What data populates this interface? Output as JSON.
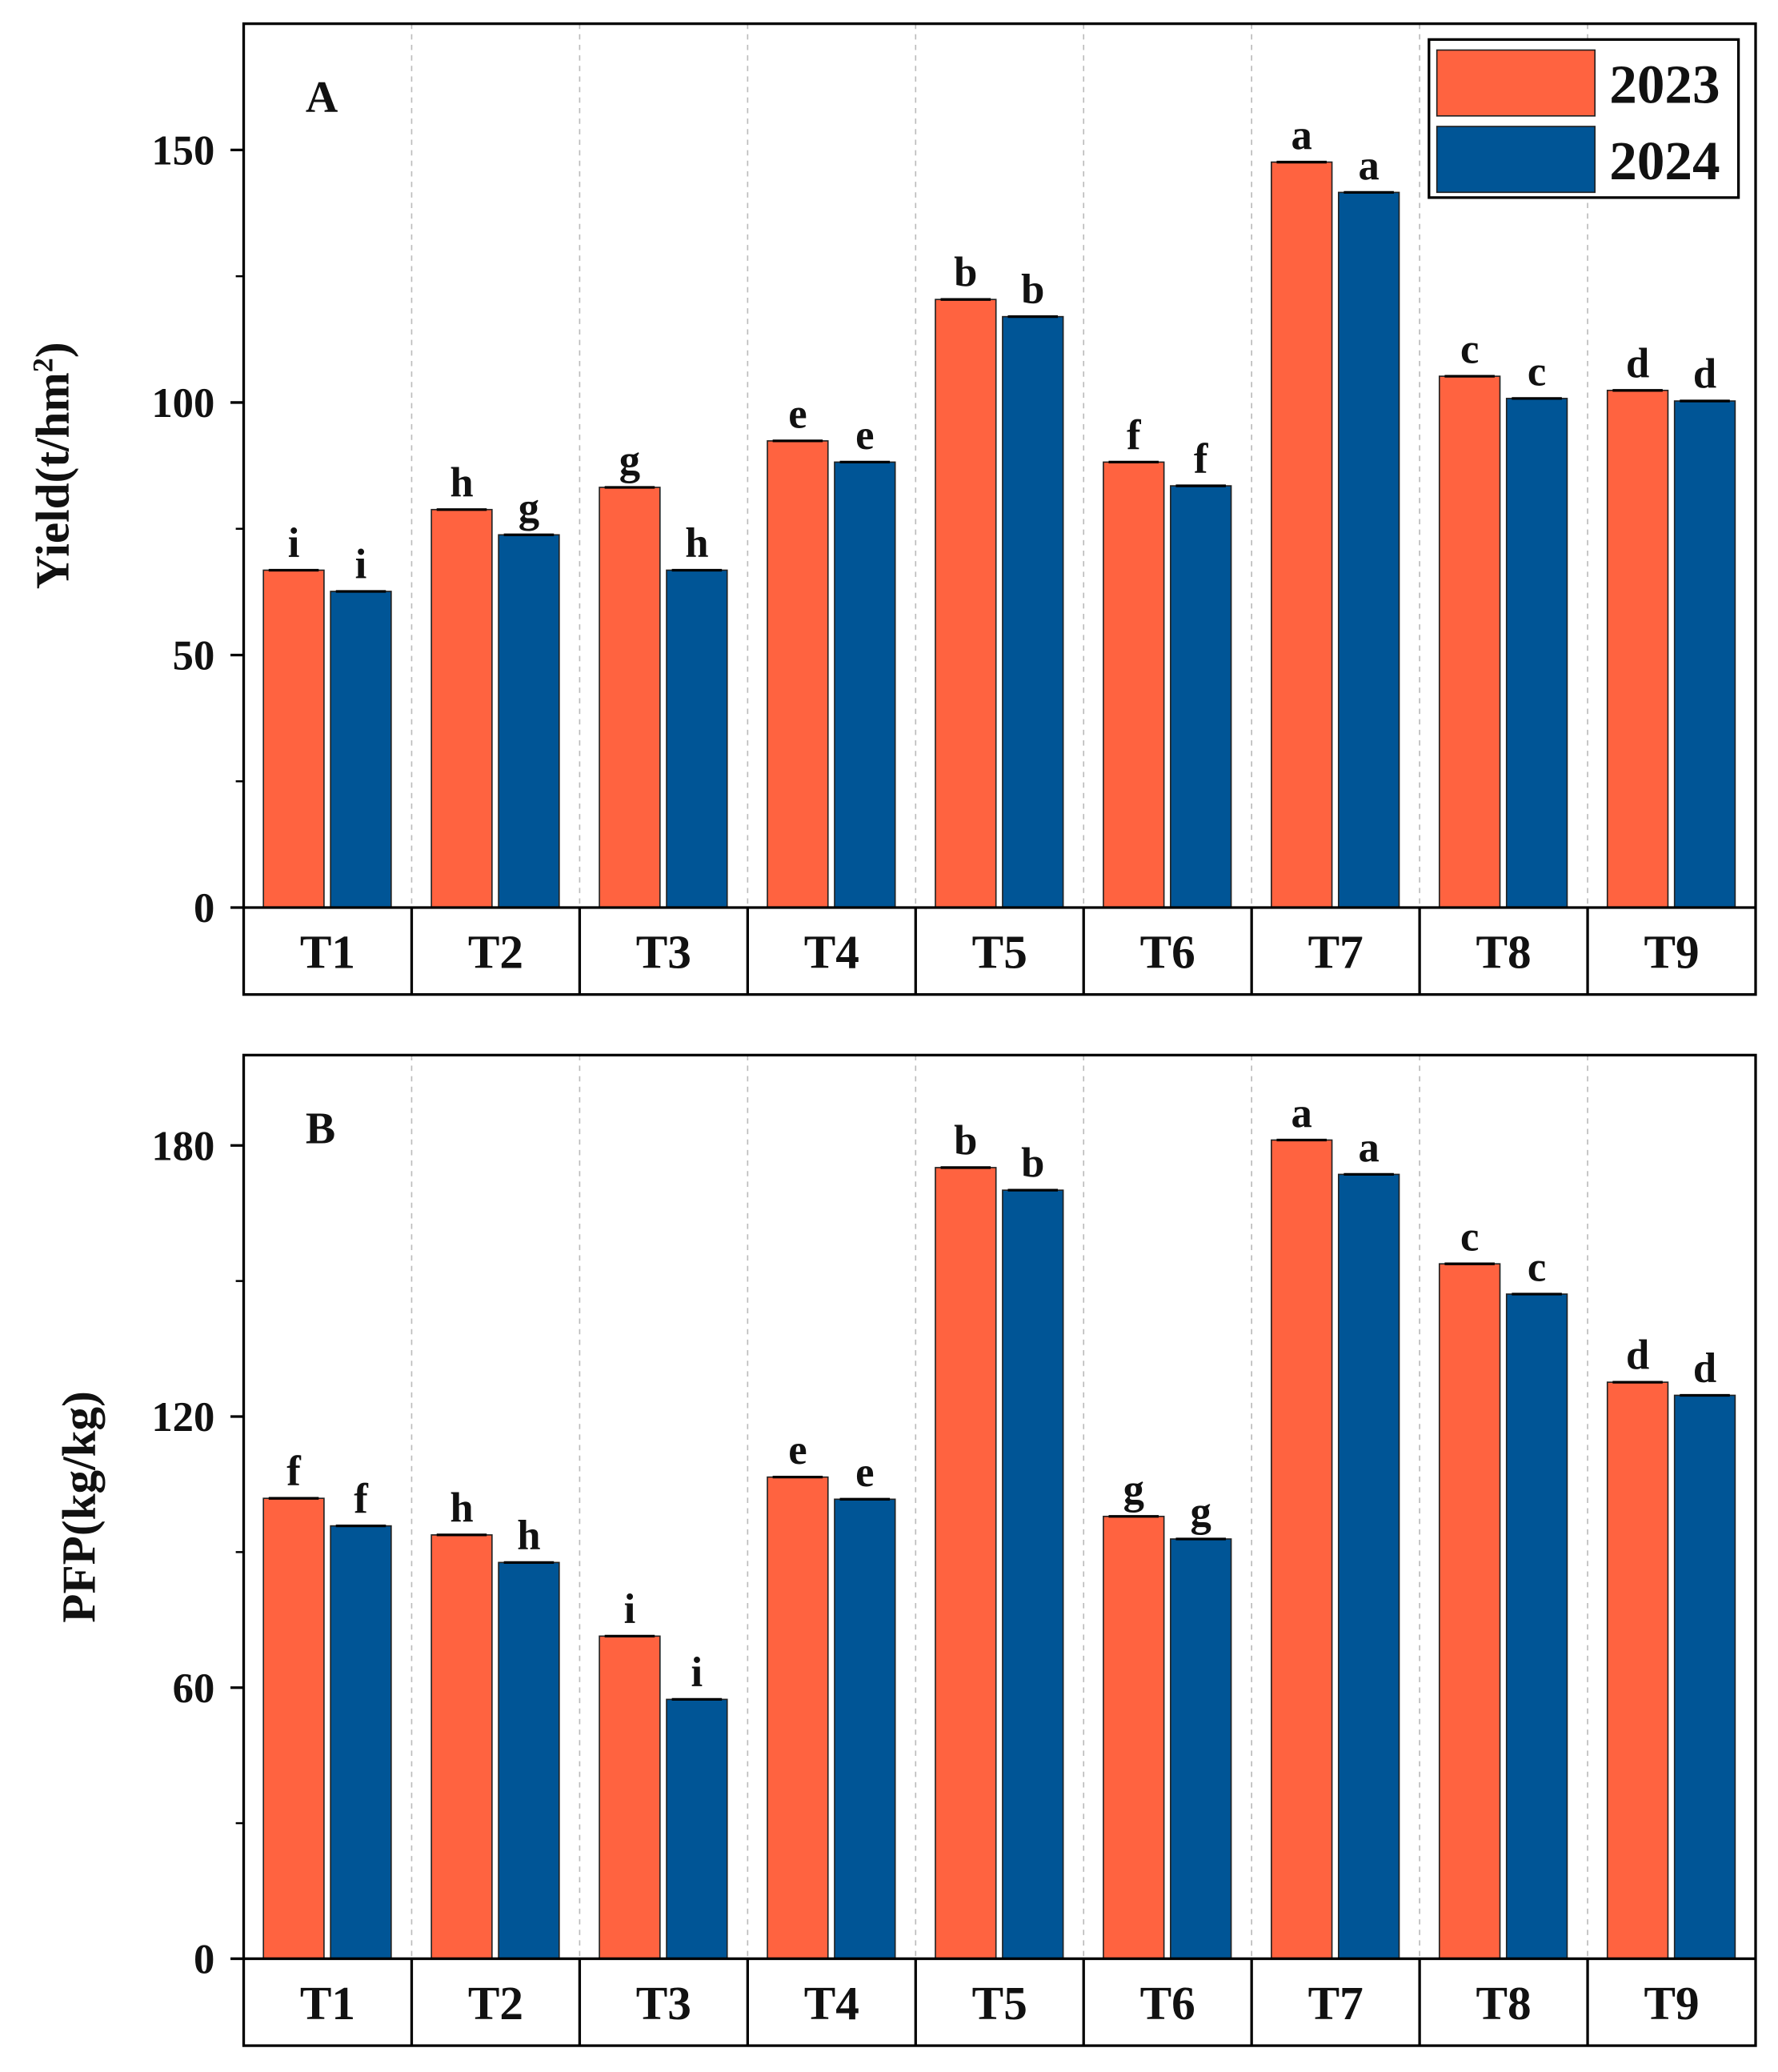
{
  "colors": {
    "2023": "#FF6340",
    "2024": "#005596"
  },
  "legend": {
    "placement": "top-right",
    "entries": [
      "2023",
      "2024"
    ]
  },
  "chart_data": [
    {
      "type": "bar",
      "panel_label": "A",
      "title": "",
      "xlabel": "",
      "ylabel": "Yield(t/hm",
      "ylabel_sup": "2",
      "ylabel_close": ")",
      "ylim": [
        0,
        175
      ],
      "yticks": [
        0,
        50,
        100,
        150
      ],
      "yminor": [
        25,
        75,
        125
      ],
      "grid": "vertical dashed between categories",
      "categories": [
        "T1",
        "T2",
        "T3",
        "T4",
        "T5",
        "T6",
        "T7",
        "T8",
        "T9"
      ],
      "series": [
        {
          "name": "2023",
          "values": [
            66.8,
            78.8,
            83.2,
            92.4,
            120.4,
            88.2,
            147.6,
            105.2,
            102.4
          ],
          "letters": [
            "i",
            "h",
            "g",
            "e",
            "b",
            "f",
            "a",
            "c",
            "d"
          ]
        },
        {
          "name": "2024",
          "values": [
            62.6,
            73.8,
            66.8,
            88.2,
            117.0,
            83.5,
            141.6,
            100.8,
            100.3
          ],
          "letters": [
            "i",
            "g",
            "h",
            "e",
            "b",
            "f",
            "a",
            "c",
            "d"
          ]
        }
      ]
    },
    {
      "type": "bar",
      "panel_label": "B",
      "title": "",
      "xlabel": "",
      "ylabel": "PFP(kg/kg)",
      "ylim": [
        0,
        200
      ],
      "yticks": [
        0,
        60,
        120,
        180
      ],
      "yminor": [
        30,
        90,
        150
      ],
      "grid": "vertical dashed between categories",
      "categories": [
        "T1",
        "T2",
        "T3",
        "T4",
        "T5",
        "T6",
        "T7",
        "T8",
        "T9"
      ],
      "series": [
        {
          "name": "2023",
          "values": [
            101.9,
            93.8,
            71.4,
            106.6,
            175.1,
            97.9,
            181.2,
            153.8,
            127.6
          ],
          "letters": [
            "f",
            "h",
            "i",
            "e",
            "b",
            "g",
            "a",
            "c",
            "d"
          ]
        },
        {
          "name": "2024",
          "values": [
            95.8,
            87.7,
            57.4,
            101.7,
            170.1,
            92.9,
            173.6,
            147.1,
            124.7
          ],
          "letters": [
            "f",
            "h",
            "i",
            "e",
            "b",
            "g",
            "a",
            "c",
            "d"
          ]
        }
      ]
    }
  ]
}
